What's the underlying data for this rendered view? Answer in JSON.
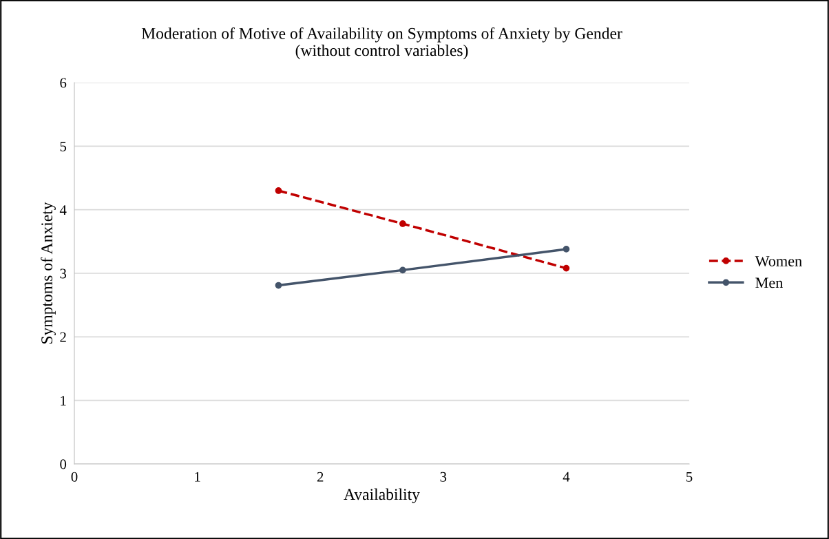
{
  "chart_data": {
    "type": "line",
    "title": "Moderation of Motive of Availability on Symptoms of Anxiety by Gender\n(without control variables)",
    "xlabel": "Availability",
    "ylabel": "Symptoms of Anxiety",
    "x": [
      1.66,
      2.67,
      4.0
    ],
    "series": [
      {
        "name": "Women",
        "color": "#c00000",
        "values": [
          4.3,
          3.78,
          3.08
        ],
        "line_style": "dashed"
      },
      {
        "name": "Men",
        "color": "#44546a",
        "values": [
          2.81,
          3.05,
          3.38
        ],
        "line_style": "solid"
      }
    ],
    "xlim": [
      0,
      5
    ],
    "xticks": [
      0,
      1,
      2,
      3,
      4,
      5
    ],
    "ylim": [
      0,
      6
    ],
    "yticks": [
      0,
      1,
      2,
      3,
      4,
      5,
      6
    ],
    "grid": "y",
    "legend": "right",
    "marker": "circle"
  }
}
